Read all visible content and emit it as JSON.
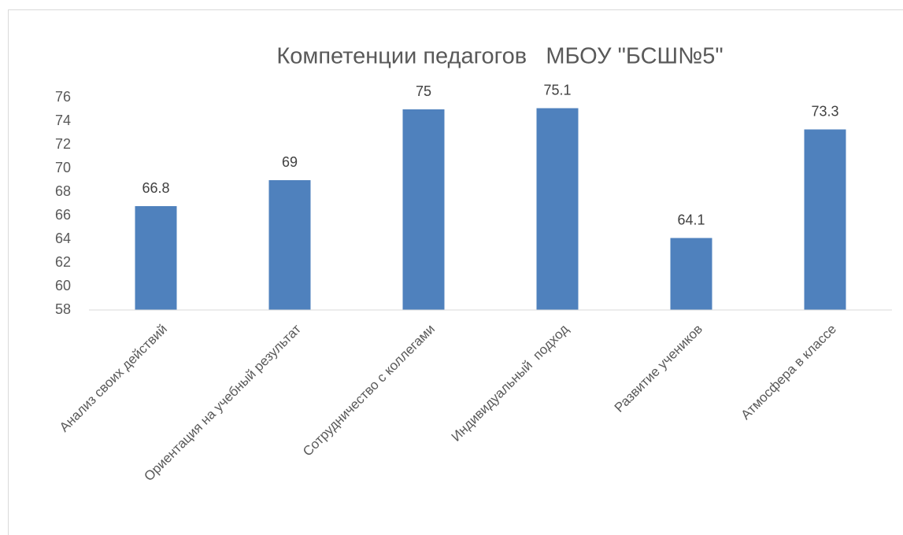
{
  "chart_data": {
    "type": "bar",
    "title": "Компетенции педагогов   МБОУ \"БСШ№5\"",
    "categories": [
      "Анализ своих действий",
      "Ориентация на учебный результат",
      "Сотрудничество с коллегами",
      "Индивидуальный  подход",
      "Развитие учеников",
      "Атмосфера в классе"
    ],
    "values": [
      66.8,
      69,
      75,
      75.1,
      64.1,
      73.3
    ],
    "color": "#4f81bd",
    "ylim": [
      58,
      76
    ],
    "yticks": [
      58,
      60,
      62,
      64,
      66,
      68,
      70,
      72,
      74,
      76
    ],
    "grid": false
  }
}
